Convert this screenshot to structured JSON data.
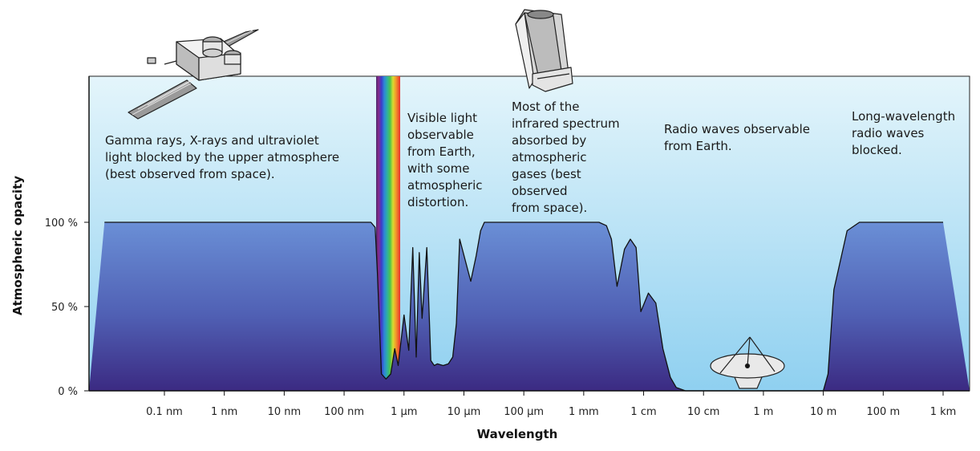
{
  "chart_data": {
    "type": "area",
    "xlabel": "Wavelength",
    "ylabel": "Atmospheric opacity",
    "x_scale": "log",
    "x_ticks": [
      "0.1 nm",
      "1 nm",
      "10 nm",
      "100 nm",
      "1 µm",
      "10 µm",
      "100 µm",
      "1 mm",
      "1 cm",
      "10 cm",
      "1 m",
      "10 m",
      "100 m",
      "1 km"
    ],
    "y_ticks": [
      "0 %",
      "50 %",
      "100 %"
    ],
    "ylim": [
      0,
      100
    ],
    "series": [
      {
        "x_m": [
          1e-11,
          2.8e-07,
          3.3e-07,
          3.6e-07,
          4.2e-07,
          5e-07,
          6e-07,
          7e-07,
          8e-07,
          1e-06,
          1.2e-06,
          1.4e-06,
          1.6e-06,
          1.8e-06,
          2e-06,
          2.4e-06,
          2.8e-06,
          3.2e-06,
          3.6e-06,
          4.5e-06,
          5.5e-06,
          6.5e-06,
          7.5e-06,
          8.5e-06,
          1.3e-05,
          1.6e-05,
          1.9e-05,
          2.2e-05,
          2.6e-05,
          3.5e-05,
          5e-05,
          0.0001,
          0.0002,
          0.0005,
          0.001,
          0.0018,
          0.0024,
          0.0029,
          0.0036,
          0.0048,
          0.006,
          0.0075,
          0.009,
          0.012,
          0.016,
          0.021,
          0.028,
          0.035,
          0.05,
          0.1,
          1,
          10,
          12,
          15,
          25,
          40,
          1000
        ],
        "opacity_pct": [
          100,
          100,
          97,
          70,
          10,
          7,
          10,
          25,
          15,
          45,
          24,
          85,
          20,
          82,
          43,
          85,
          18,
          15,
          16,
          15,
          16,
          20,
          40,
          90,
          65,
          80,
          95,
          100,
          100,
          100,
          100,
          100,
          100,
          100,
          100,
          100,
          98,
          90,
          62,
          84,
          90,
          85,
          47,
          58,
          52,
          25,
          8,
          2,
          0,
          0,
          0,
          0,
          10,
          60,
          95,
          100,
          100
        ]
      }
    ],
    "spectrum_band": {
      "from": "380 nm",
      "to": "750 nm"
    },
    "annotations": [
      {
        "lines": [
          "Gamma rays, X-rays and ultraviolet",
          "light blocked by the upper atmosphere",
          "(best observed from space)."
        ]
      },
      {
        "lines": [
          "Visible light",
          "observable",
          "from Earth,",
          "with some",
          "atmospheric",
          "distortion."
        ]
      },
      {
        "lines": [
          "Most of the",
          "infrared spectrum",
          "absorbed by",
          "atmospheric",
          "gases (best",
          "observed",
          "from space)."
        ]
      },
      {
        "lines": [
          "Radio waves observable",
          "from Earth."
        ]
      },
      {
        "lines": [
          "Long-wavelength",
          "radio waves",
          "blocked."
        ]
      }
    ],
    "colors": {
      "sky_top": "#e4f5fb",
      "sky_bottom": "#8fd0f0",
      "fill_top": "#6a8fd6",
      "fill_bottom": "#3b2a82",
      "outline": "#111111"
    },
    "illustrations": [
      "space-telescope-satellite",
      "infrared-space-telescope",
      "radio-dish-antenna"
    ]
  }
}
